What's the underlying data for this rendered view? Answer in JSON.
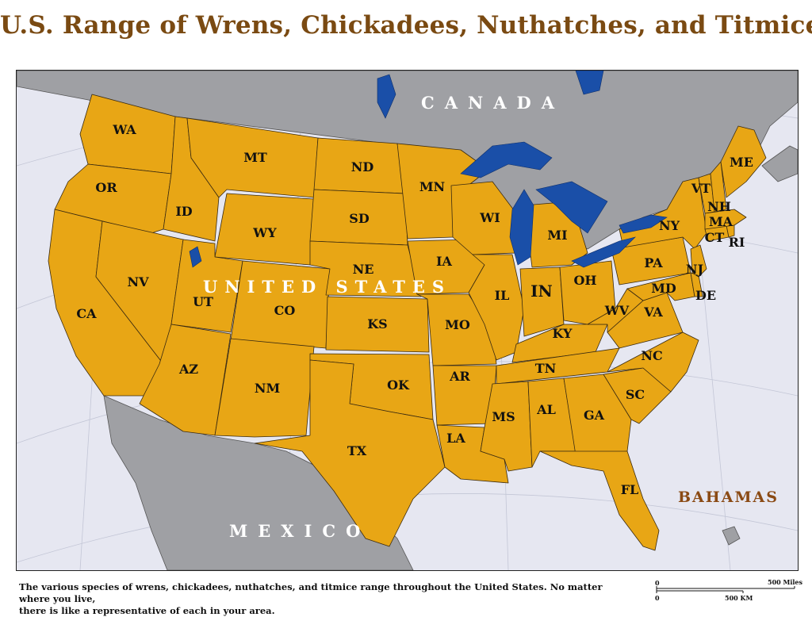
{
  "title": "U.S. Range of Wrens, Chickadees, Nuthatches, and Titmice",
  "map": {
    "colors": {
      "range_fill": "#e8a615",
      "foreign_land": "#9fa0a4",
      "ocean": "#e6e7f1",
      "lakes": "#1a4fa8",
      "title": "#7a4a12",
      "bahamas_label": "#8a4a14"
    },
    "countries": {
      "canada": "CANADA",
      "united_states": "UNITED STATES",
      "mexico": "MEXICO",
      "bahamas": "BAHAMAS"
    },
    "states": [
      "WA",
      "OR",
      "CA",
      "ID",
      "NV",
      "MT",
      "WY",
      "UT",
      "AZ",
      "CO",
      "NM",
      "ND",
      "SD",
      "NE",
      "KS",
      "OK",
      "TX",
      "MN",
      "IA",
      "MO",
      "AR",
      "LA",
      "WI",
      "IL",
      "MI",
      "IN",
      "OH",
      "KY",
      "TN",
      "MS",
      "AL",
      "GA",
      "FL",
      "SC",
      "NC",
      "VA",
      "WV",
      "PA",
      "NY",
      "MD",
      "DE",
      "NJ",
      "CT",
      "RI",
      "MA",
      "NH",
      "VT",
      "ME"
    ]
  },
  "caption": {
    "line1": "The various species of wrens, chickadees, nuthatches, and titmice range throughout the United States. No matter where you live,",
    "line2": "there is like a representative of each in your area."
  },
  "scale": {
    "miles_start": "0",
    "miles_end": "500 Miles",
    "km_start": "0",
    "km_end": "500 KM"
  }
}
